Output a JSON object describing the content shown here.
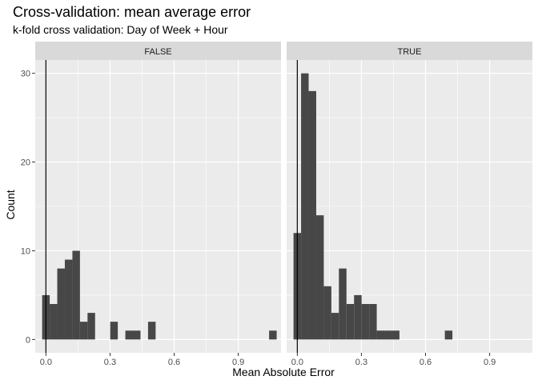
{
  "chart_data": {
    "type": "bar",
    "title": "Cross-validation: mean average error",
    "subtitle": "k-fold cross validation: Day of Week + Hour",
    "xlabel": "Mean Absolute Error",
    "ylabel": "Count",
    "xlim": [
      -0.05,
      1.1
    ],
    "ylim": [
      -1.5,
      31.5
    ],
    "x_ticks": [
      0.0,
      0.3,
      0.6,
      0.9
    ],
    "x_tick_labels": [
      "0.0",
      "0.3",
      "0.6",
      "0.9"
    ],
    "y_ticks": [
      0,
      10,
      20,
      30
    ],
    "y_tick_labels": [
      "0",
      "10",
      "20",
      "30"
    ],
    "bin_width": 0.0354,
    "vline_x": 0,
    "grid": true,
    "bar_color": "#474747",
    "panel_background": "#ebebeb",
    "grid_color": "#ffffff",
    "strip_background": "#d9d9d9",
    "panels": [
      {
        "label": "FALSE",
        "bins": [
          {
            "x": 0.0,
            "count": 5
          },
          {
            "x": 0.0354,
            "count": 4
          },
          {
            "x": 0.0708,
            "count": 8
          },
          {
            "x": 0.1062,
            "count": 9
          },
          {
            "x": 0.1416,
            "count": 10
          },
          {
            "x": 0.177,
            "count": 2
          },
          {
            "x": 0.2124,
            "count": 3
          },
          {
            "x": 0.3186,
            "count": 2
          },
          {
            "x": 0.3894,
            "count": 1
          },
          {
            "x": 0.4248,
            "count": 1
          },
          {
            "x": 0.4956,
            "count": 2
          },
          {
            "x": 1.062,
            "count": 1
          }
        ]
      },
      {
        "label": "TRUE",
        "bins": [
          {
            "x": 0.0,
            "count": 12
          },
          {
            "x": 0.0354,
            "count": 30
          },
          {
            "x": 0.0708,
            "count": 28
          },
          {
            "x": 0.1062,
            "count": 14
          },
          {
            "x": 0.1416,
            "count": 6
          },
          {
            "x": 0.177,
            "count": 3
          },
          {
            "x": 0.2124,
            "count": 8
          },
          {
            "x": 0.2478,
            "count": 4
          },
          {
            "x": 0.2832,
            "count": 5
          },
          {
            "x": 0.3186,
            "count": 4
          },
          {
            "x": 0.354,
            "count": 4
          },
          {
            "x": 0.3894,
            "count": 1
          },
          {
            "x": 0.4248,
            "count": 1
          },
          {
            "x": 0.4602,
            "count": 1
          },
          {
            "x": 0.708,
            "count": 1
          }
        ]
      }
    ]
  }
}
